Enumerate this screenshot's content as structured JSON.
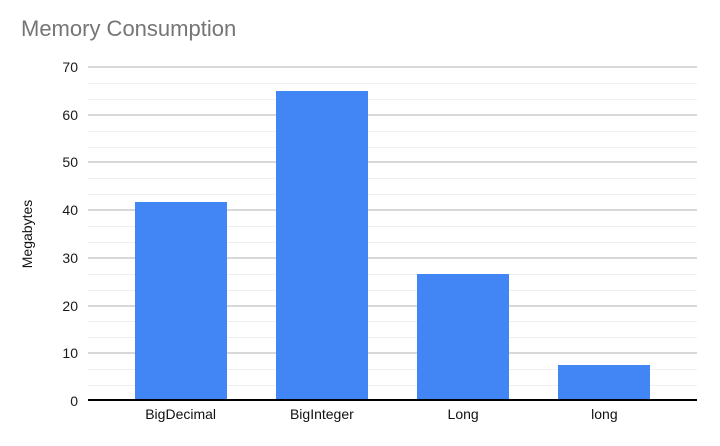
{
  "figure": {
    "background": "#ffffff"
  },
  "chart_data": {
    "type": "bar",
    "title": "Memory Consumption",
    "title_color": "#757575",
    "categories": [
      "BigDecimal",
      "BigInteger",
      "Long",
      "long"
    ],
    "values": [
      41.8,
      65,
      26.6,
      7.5
    ],
    "xlabel": "",
    "ylabel": "Megabytes",
    "ylim": [
      0,
      70
    ],
    "y_ticks": [
      0,
      10,
      20,
      30,
      40,
      50,
      60,
      70
    ],
    "minor_gridlines_per_major": 2,
    "grid": true,
    "legend": false,
    "bar_color": "#4285f4",
    "major_grid_color": "#d8d8d8",
    "minor_grid_color": "#f0f0f0",
    "axis_line_color": "#000000",
    "tick_label_color": "#1a1a1a"
  }
}
